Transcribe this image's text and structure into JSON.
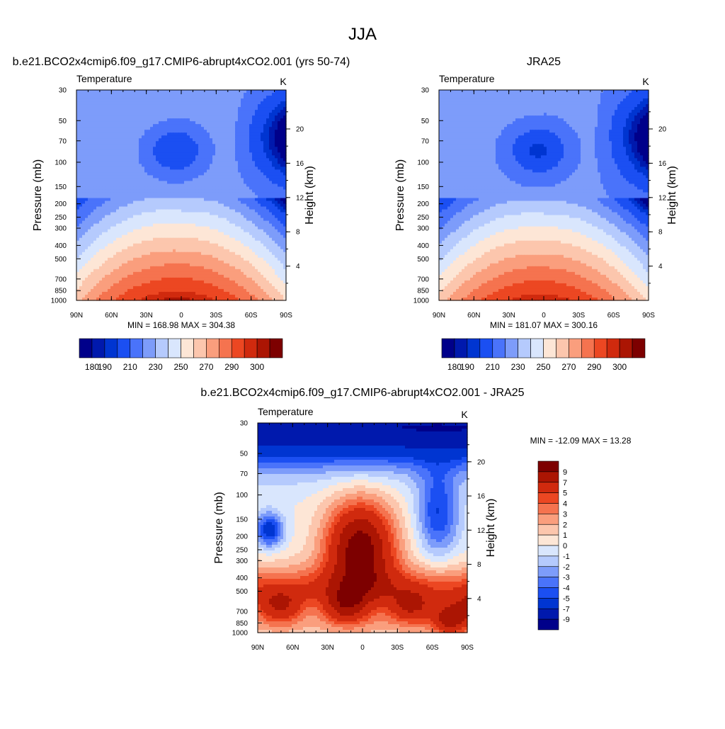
{
  "page": {
    "title": "JJA",
    "panel_titles": [
      "b.e21.BCO2x4cmip6.f09_g17.CMIP6-abrupt4xCO2.001 (yrs 50-74)",
      "JRA25",
      "b.e21.BCO2x4cmip6.f09_g17.CMIP6-abrupt4xCO2.001 - JRA25"
    ]
  },
  "chart_data": [
    {
      "type": "heatmap",
      "title": "b.e21.BCO2x4cmip6.f09_g17.CMIP6-abrupt4xCO2.001 (yrs 50-74)",
      "subtitle_left": "Temperature",
      "subtitle_right": "K",
      "ylabel": "Pressure (mb)",
      "ylabel_right": "Height (km)",
      "x_ticks": [
        "90N",
        "60N",
        "30N",
        "0",
        "30S",
        "60S",
        "90S"
      ],
      "y_ticks": [
        "30",
        "50",
        "70",
        "100",
        "150",
        "200",
        "250",
        "300",
        "400",
        "500",
        "700",
        "850",
        "1000"
      ],
      "y_right_ticks": [
        "20",
        "16",
        "12",
        "8",
        "4"
      ],
      "stats": "MIN = 168.98  MAX = 304.38",
      "colorbar": {
        "labels": [
          "180",
          "190",
          "210",
          "230",
          "250",
          "270",
          "290",
          "300"
        ],
        "colors": [
          "#00008a",
          "#0019ad",
          "#0035d1",
          "#1b4ff2",
          "#4a73fa",
          "#7d9cfa",
          "#b5cafd",
          "#d9e6fd",
          "#fde6d6",
          "#fcc6ad",
          "#fa9e7d",
          "#f5734f",
          "#ec4722",
          "#d02a0e",
          "#ab1503",
          "#7d0000"
        ]
      },
      "dataset": "model"
    },
    {
      "type": "heatmap",
      "title": "JRA25",
      "subtitle_left": "Temperature",
      "subtitle_right": "K",
      "ylabel": "Pressure (mb)",
      "ylabel_right": "Height (km)",
      "x_ticks": [
        "90N",
        "60N",
        "30N",
        "0",
        "30S",
        "60S",
        "90S"
      ],
      "y_ticks": [
        "30",
        "50",
        "70",
        "100",
        "150",
        "200",
        "250",
        "300",
        "400",
        "500",
        "700",
        "850",
        "1000"
      ],
      "y_right_ticks": [
        "20",
        "16",
        "12",
        "8",
        "4"
      ],
      "stats": "MIN = 181.07  MAX = 300.16",
      "colorbar": {
        "labels": [
          "180",
          "190",
          "210",
          "230",
          "250",
          "270",
          "290",
          "300"
        ],
        "colors": [
          "#00008a",
          "#0019ad",
          "#0035d1",
          "#1b4ff2",
          "#4a73fa",
          "#7d9cfa",
          "#b5cafd",
          "#d9e6fd",
          "#fde6d6",
          "#fcc6ad",
          "#fa9e7d",
          "#f5734f",
          "#ec4722",
          "#d02a0e",
          "#ab1503",
          "#7d0000"
        ]
      },
      "dataset": "obs"
    },
    {
      "type": "heatmap",
      "title": "b.e21.BCO2x4cmip6.f09_g17.CMIP6-abrupt4xCO2.001 - JRA25",
      "subtitle_left": "Temperature",
      "subtitle_right": "K",
      "ylabel": "Pressure (mb)",
      "ylabel_right": "Height (km)",
      "x_ticks": [
        "90N",
        "60N",
        "30N",
        "0",
        "30S",
        "60S",
        "90S"
      ],
      "y_ticks": [
        "30",
        "50",
        "70",
        "100",
        "150",
        "200",
        "250",
        "300",
        "400",
        "500",
        "700",
        "850",
        "1000"
      ],
      "y_right_ticks": [
        "20",
        "16",
        "12",
        "8",
        "4"
      ],
      "stats": "MIN = -12.09  MAX =  13.28",
      "colorbar": {
        "labels": [
          "9",
          "7",
          "5",
          "4",
          "3",
          "2",
          "1",
          "0",
          "-1",
          "-2",
          "-3",
          "-4",
          "-5",
          "-7",
          "-9"
        ],
        "colors": [
          "#7d0000",
          "#ab1503",
          "#d02a0e",
          "#ec4722",
          "#f5734f",
          "#fa9e7d",
          "#fcc6ad",
          "#fde6d6",
          "#d9e6fd",
          "#b5cafd",
          "#7d9cfa",
          "#4a73fa",
          "#1b4ff2",
          "#0035d1",
          "#0019ad",
          "#00008a"
        ]
      },
      "dataset": "diff"
    }
  ]
}
